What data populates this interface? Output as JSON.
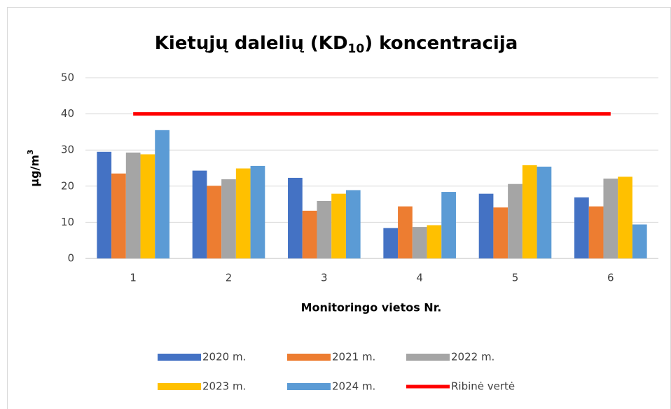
{
  "chart_data": {
    "type": "bar",
    "title": [
      "Kietųjų dalelių (KD",
      "10",
      ") koncentracija"
    ],
    "xlabel": "Monitoringo vietos Nr.",
    "ylabel": [
      "μg/m",
      "3"
    ],
    "categories": [
      "1",
      "2",
      "3",
      "4",
      "5",
      "6"
    ],
    "ylim": [
      0,
      50
    ],
    "yticks": [
      0,
      10,
      20,
      30,
      40,
      50
    ],
    "grid": true,
    "legend": "bottom",
    "series": [
      {
        "name": "2020 m.",
        "color": "#4472c4",
        "values": [
          29.5,
          24.3,
          22.3,
          8.4,
          17.9,
          16.9
        ]
      },
      {
        "name": "2021 m.",
        "color": "#ed7d31",
        "values": [
          23.5,
          20.1,
          13.2,
          14.4,
          14.1,
          14.4
        ]
      },
      {
        "name": "2022 m.",
        "color": "#a5a5a5",
        "values": [
          29.3,
          21.9,
          15.9,
          8.7,
          20.6,
          22.1
        ]
      },
      {
        "name": "2023 m.",
        "color": "#ffc000",
        "values": [
          28.8,
          24.9,
          17.9,
          9.2,
          25.8,
          22.6
        ]
      },
      {
        "name": "2024 m.",
        "color": "#5b9bd5",
        "values": [
          35.5,
          25.6,
          18.9,
          18.4,
          25.4,
          9.4
        ]
      },
      {
        "name": "Ribinė vertė",
        "color": "#ff0000",
        "type": "line",
        "values": [
          40,
          40,
          40,
          40,
          40,
          40
        ]
      }
    ]
  }
}
